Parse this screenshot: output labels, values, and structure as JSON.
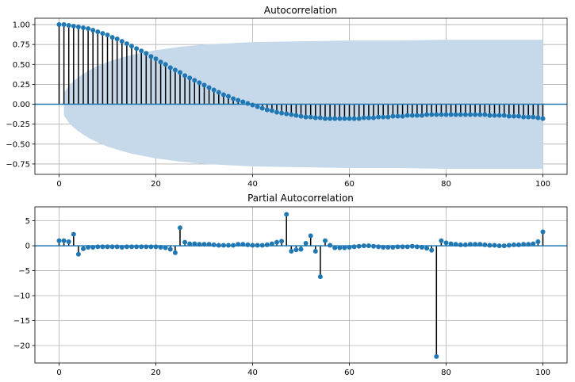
{
  "chart_data": [
    {
      "type": "stem",
      "title": "Autocorrelation",
      "xlabel": "",
      "ylabel": "",
      "xlim": [
        -5,
        105
      ],
      "ylim": [
        -0.88,
        1.08
      ],
      "xticks": [
        0,
        20,
        40,
        60,
        80,
        100
      ],
      "yticks": [
        -0.75,
        -0.5,
        -0.25,
        0.0,
        0.25,
        0.5,
        0.75,
        1.0
      ],
      "ytick_labels": [
        "−0.75",
        "−0.50",
        "−0.25",
        "0.00",
        "0.25",
        "0.50",
        "0.75",
        "1.00"
      ],
      "grid": true,
      "marker_color": "#1f77b4",
      "stem_color": "#000000",
      "baseline_color": "#1f77b4",
      "confidence_band_color": "#c5d9ea",
      "confidence_band": {
        "x": [
          1,
          2,
          3,
          4,
          5,
          6,
          8,
          10,
          12,
          15,
          20,
          25,
          30,
          40,
          50,
          60,
          70,
          80,
          90,
          100
        ],
        "upper": [
          0.14,
          0.23,
          0.29,
          0.34,
          0.38,
          0.42,
          0.48,
          0.53,
          0.57,
          0.62,
          0.68,
          0.72,
          0.75,
          0.78,
          0.79,
          0.8,
          0.8,
          0.81,
          0.81,
          0.81
        ]
      },
      "x": [
        0,
        1,
        2,
        3,
        4,
        5,
        6,
        7,
        8,
        9,
        10,
        11,
        12,
        13,
        14,
        15,
        16,
        17,
        18,
        19,
        20,
        21,
        22,
        23,
        24,
        25,
        26,
        27,
        28,
        29,
        30,
        31,
        32,
        33,
        34,
        35,
        36,
        37,
        38,
        39,
        40,
        41,
        42,
        43,
        44,
        45,
        46,
        47,
        48,
        49,
        50,
        51,
        52,
        53,
        54,
        55,
        56,
        57,
        58,
        59,
        60,
        61,
        62,
        63,
        64,
        65,
        66,
        67,
        68,
        69,
        70,
        71,
        72,
        73,
        74,
        75,
        76,
        77,
        78,
        79,
        80,
        81,
        82,
        83,
        84,
        85,
        86,
        87,
        88,
        89,
        90,
        91,
        92,
        93,
        94,
        95,
        96,
        97,
        98,
        99,
        100
      ],
      "y": [
        1.0,
        1.0,
        0.99,
        0.98,
        0.97,
        0.96,
        0.95,
        0.93,
        0.91,
        0.89,
        0.87,
        0.84,
        0.82,
        0.79,
        0.76,
        0.73,
        0.7,
        0.67,
        0.64,
        0.6,
        0.57,
        0.53,
        0.5,
        0.46,
        0.43,
        0.4,
        0.36,
        0.33,
        0.3,
        0.27,
        0.24,
        0.21,
        0.18,
        0.15,
        0.12,
        0.1,
        0.07,
        0.05,
        0.03,
        0.01,
        -0.01,
        -0.03,
        -0.05,
        -0.07,
        -0.08,
        -0.1,
        -0.11,
        -0.12,
        -0.13,
        -0.14,
        -0.15,
        -0.16,
        -0.16,
        -0.17,
        -0.17,
        -0.18,
        -0.18,
        -0.18,
        -0.18,
        -0.18,
        -0.18,
        -0.18,
        -0.18,
        -0.17,
        -0.17,
        -0.17,
        -0.16,
        -0.16,
        -0.16,
        -0.15,
        -0.15,
        -0.15,
        -0.14,
        -0.14,
        -0.14,
        -0.14,
        -0.13,
        -0.13,
        -0.13,
        -0.13,
        -0.13,
        -0.13,
        -0.13,
        -0.13,
        -0.13,
        -0.13,
        -0.13,
        -0.13,
        -0.13,
        -0.14,
        -0.14,
        -0.14,
        -0.14,
        -0.15,
        -0.15,
        -0.15,
        -0.16,
        -0.16,
        -0.16,
        -0.17,
        -0.18
      ]
    },
    {
      "type": "stem",
      "title": "Partial Autocorrelation",
      "xlabel": "",
      "ylabel": "",
      "xlim": [
        -5,
        105
      ],
      "ylim": [
        -23.5,
        7.8
      ],
      "xticks": [
        0,
        20,
        40,
        60,
        80,
        100
      ],
      "yticks": [
        -20,
        -15,
        -10,
        -5,
        0,
        5
      ],
      "ytick_labels": [
        "−20",
        "−15",
        "−10",
        "−5",
        "0",
        "5"
      ],
      "grid": true,
      "marker_color": "#1f77b4",
      "stem_color": "#000000",
      "baseline_color": "#1f77b4",
      "x": [
        0,
        1,
        2,
        3,
        4,
        5,
        6,
        7,
        8,
        9,
        10,
        11,
        12,
        13,
        14,
        15,
        16,
        17,
        18,
        19,
        20,
        21,
        22,
        23,
        24,
        25,
        26,
        27,
        28,
        29,
        30,
        31,
        32,
        33,
        34,
        35,
        36,
        37,
        38,
        39,
        40,
        41,
        42,
        43,
        44,
        45,
        46,
        47,
        48,
        49,
        50,
        51,
        52,
        53,
        54,
        55,
        56,
        57,
        58,
        59,
        60,
        61,
        62,
        63,
        64,
        65,
        66,
        67,
        68,
        69,
        70,
        71,
        72,
        73,
        74,
        75,
        76,
        77,
        78,
        79,
        80,
        81,
        82,
        83,
        84,
        85,
        86,
        87,
        88,
        89,
        90,
        91,
        92,
        93,
        94,
        95,
        96,
        97,
        98,
        99,
        100
      ],
      "y": [
        1.0,
        1.0,
        0.8,
        2.3,
        -1.7,
        -0.6,
        -0.3,
        -0.3,
        -0.2,
        -0.2,
        -0.2,
        -0.2,
        -0.2,
        -0.3,
        -0.2,
        -0.2,
        -0.2,
        -0.2,
        -0.2,
        -0.2,
        -0.2,
        -0.3,
        -0.4,
        -0.7,
        -1.4,
        3.6,
        0.7,
        0.4,
        0.4,
        0.3,
        0.3,
        0.3,
        0.2,
        0.1,
        0.1,
        0.1,
        0.1,
        0.3,
        0.3,
        0.2,
        0.1,
        0.1,
        0.1,
        0.2,
        0.4,
        0.7,
        0.9,
        6.3,
        -1.1,
        -0.8,
        -0.7,
        0.5,
        2.0,
        -1.1,
        -6.2,
        1.0,
        0.1,
        -0.4,
        -0.4,
        -0.4,
        -0.3,
        -0.2,
        -0.1,
        0.0,
        0.0,
        -0.1,
        -0.2,
        -0.3,
        -0.3,
        -0.3,
        -0.2,
        -0.2,
        -0.2,
        -0.1,
        -0.2,
        -0.3,
        -0.5,
        -0.9,
        -22.2,
        1.0,
        0.6,
        0.4,
        0.3,
        0.2,
        0.2,
        0.3,
        0.3,
        0.3,
        0.2,
        0.1,
        0.1,
        0.0,
        0.0,
        0.1,
        0.2,
        0.2,
        0.3,
        0.3,
        0.4,
        0.8,
        2.8
      ]
    }
  ]
}
